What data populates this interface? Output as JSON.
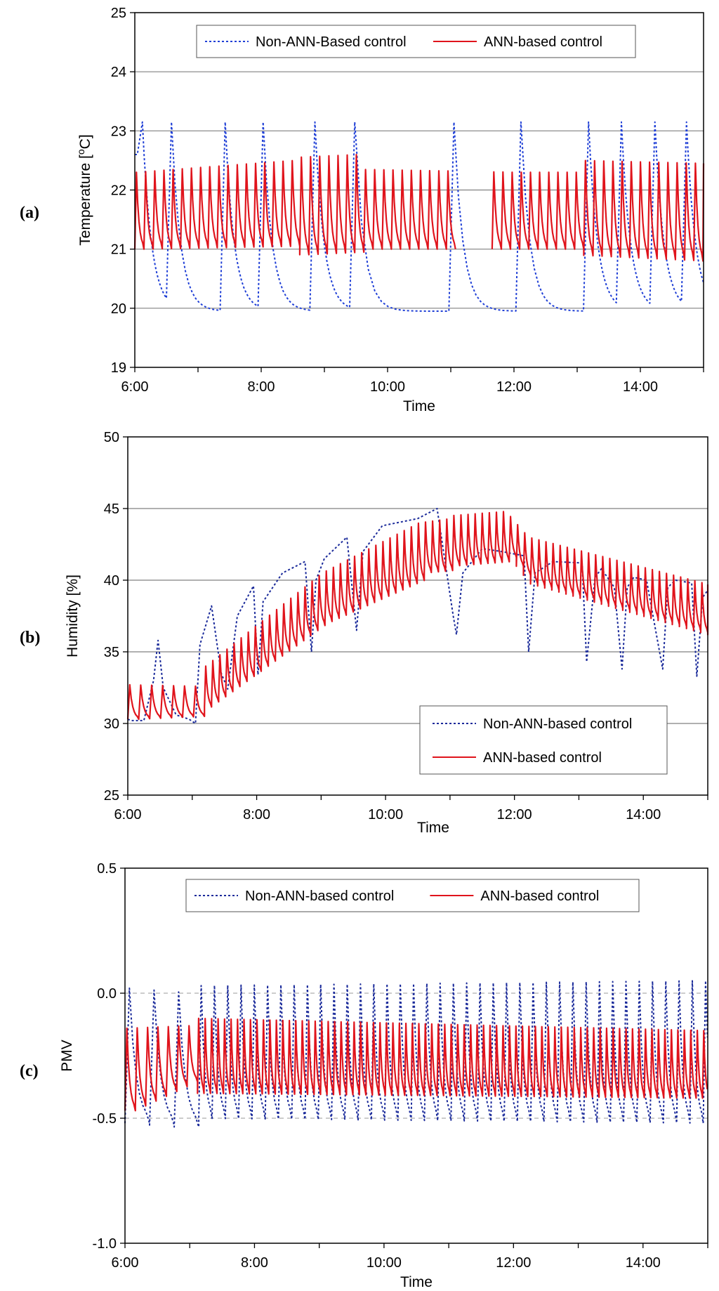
{
  "chart_data": [
    {
      "type": "line",
      "panel_label": "(a)",
      "title": "",
      "xlabel": "Time",
      "ylabel": "Temperature [°C]",
      "ylabel_base": "Temperature [",
      "ylabel_sup": "o",
      "ylabel_end": "C]",
      "xlim": [
        6,
        15
      ],
      "ylim": [
        19,
        25
      ],
      "x_ticks": [
        {
          "value": 6,
          "label": "6:00"
        },
        {
          "value": 8,
          "label": "8:00"
        },
        {
          "value": 10,
          "label": "10:00"
        },
        {
          "value": 12,
          "label": "12:00"
        },
        {
          "value": 14,
          "label": "14:00"
        }
      ],
      "y_ticks": [
        {
          "value": 19,
          "label": "19"
        },
        {
          "value": 20,
          "label": "20"
        },
        {
          "value": 21,
          "label": "21"
        },
        {
          "value": 22,
          "label": "22"
        },
        {
          "value": 23,
          "label": "23"
        },
        {
          "value": 24,
          "label": "24"
        },
        {
          "value": 25,
          "label": "25"
        }
      ],
      "gridlines": "horizontal-solid",
      "legend_position": "top-center",
      "legend_layout": "row",
      "series": [
        {
          "name": "Non-ANN-Based control",
          "color": "#1f3fd6",
          "style": "dotted",
          "model": "sawtooth",
          "rises": [
            6.04,
            6.5,
            7.35,
            7.95,
            8.77,
            9.4,
            10.97,
            12.03,
            13.1,
            13.62,
            14.15,
            14.65
          ],
          "rise_duration": 0.08,
          "start_level": 22.6,
          "peak": 23.15,
          "trough": 19.95,
          "decay_rate": 3.2
        },
        {
          "name": "ANN-based control",
          "color": "#e0141c",
          "style": "solid",
          "model": "oscillation",
          "period": 0.145,
          "gaps": [
            [
              10.98,
              11.6
            ]
          ],
          "segments": [
            {
              "from": 6,
              "to": 8.5,
              "peak": [
                22.3,
                22.5
              ],
              "trough": [
                21.0,
                21.05
              ]
            },
            {
              "from": 8.5,
              "to": 9.5,
              "peak": [
                22.55,
                22.6
              ],
              "trough": [
                20.9,
                20.95
              ]
            },
            {
              "from": 9.5,
              "to": 12,
              "peak": [
                22.35,
                22.3
              ],
              "trough": [
                21.0,
                21.0
              ]
            },
            {
              "from": 12,
              "to": 13,
              "peak": [
                22.3,
                22.3
              ],
              "trough": [
                21.0,
                21.0
              ]
            },
            {
              "from": 13,
              "to": 15,
              "peak": [
                22.5,
                22.45
              ],
              "trough": [
                20.9,
                20.8
              ]
            }
          ]
        }
      ]
    },
    {
      "type": "line",
      "panel_label": "(b)",
      "title": "",
      "xlabel": "Time",
      "ylabel": "Humidity [%]",
      "xlim": [
        6,
        15
      ],
      "ylim": [
        25,
        50
      ],
      "x_ticks": [
        {
          "value": 6,
          "label": "6:00"
        },
        {
          "value": 8,
          "label": "8:00"
        },
        {
          "value": 10,
          "label": "10:00"
        },
        {
          "value": 12,
          "label": "12:00"
        },
        {
          "value": 14,
          "label": "14:00"
        }
      ],
      "y_ticks": [
        {
          "value": 25,
          "label": "25"
        },
        {
          "value": 30,
          "label": "30"
        },
        {
          "value": 35,
          "label": "35"
        },
        {
          "value": 40,
          "label": "40"
        },
        {
          "value": 45,
          "label": "45"
        },
        {
          "value": 50,
          "label": "50"
        }
      ],
      "gridlines": "horizontal-solid",
      "legend_position": "bottom-right",
      "legend_layout": "column",
      "series": [
        {
          "name": "Non-ANN-based control",
          "color": "#1a2a9a",
          "style": "dotted",
          "model": "polyline",
          "x": [
            6.0,
            6.05,
            6.25,
            6.4,
            6.47,
            6.55,
            6.75,
            6.95,
            7.05,
            7.12,
            7.3,
            7.45,
            7.55,
            7.7,
            7.95,
            8.02,
            8.1,
            8.4,
            8.75,
            8.85,
            8.92,
            9.05,
            9.4,
            9.55,
            9.65,
            9.95,
            10.5,
            10.8,
            11.05,
            11.1,
            11.2,
            11.5,
            11.8,
            12.15,
            12.22,
            12.32,
            12.6,
            13.05,
            13.12,
            13.25,
            13.35,
            13.55,
            13.67,
            13.75,
            13.85,
            14.05,
            14.3,
            14.38,
            14.5,
            14.75,
            14.83,
            14.92,
            15.0
          ],
          "y": [
            30.3,
            30.2,
            30.2,
            33.0,
            35.8,
            32.5,
            30.6,
            30.3,
            30.0,
            35.5,
            38.2,
            33.5,
            32.4,
            37.5,
            39.6,
            33.4,
            38.5,
            40.5,
            41.3,
            35.0,
            40.0,
            41.5,
            43.0,
            36.5,
            42.0,
            43.8,
            44.3,
            45.0,
            37.5,
            36.2,
            40.5,
            42.2,
            42.0,
            41.7,
            35.0,
            40.5,
            41.3,
            41.2,
            34.3,
            40.2,
            40.8,
            39.5,
            33.8,
            39.5,
            40.2,
            40.0,
            33.8,
            39.5,
            40.0,
            39.8,
            33.3,
            38.8,
            39.3
          ]
        },
        {
          "name": "ANN-based control",
          "color": "#e0141c",
          "style": "solid",
          "model": "oscillation",
          "period": 0.11,
          "gaps": [],
          "segments": [
            {
              "from": 6,
              "to": 7.05,
              "peak": [
                32.7,
                32.6
              ],
              "trough": [
                30.3,
                30.5
              ],
              "period": 0.17
            },
            {
              "from": 7.05,
              "to": 9.0,
              "peak": [
                33.5,
                40.5
              ],
              "trough": [
                30.7,
                37.0
              ]
            },
            {
              "from": 9.0,
              "to": 10.5,
              "peak": [
                40.5,
                44.0
              ],
              "trough": [
                37.0,
                40.0
              ]
            },
            {
              "from": 10.5,
              "to": 11.0,
              "peak": [
                44.0,
                44.3
              ],
              "trough": [
                40.5,
                40.7
              ]
            },
            {
              "from": 11.0,
              "to": 11.85,
              "peak": [
                44.5,
                44.8
              ],
              "trough": [
                41.0,
                41.3
              ]
            },
            {
              "from": 11.85,
              "to": 12.2,
              "peak": [
                44.8,
                43.0
              ],
              "trough": [
                42.0,
                40.0
              ]
            },
            {
              "from": 12.2,
              "to": 15,
              "peak": [
                43.0,
                39.7
              ],
              "trough": [
                39.8,
                36.2
              ]
            }
          ]
        }
      ]
    },
    {
      "type": "line",
      "panel_label": "(c)",
      "title": "",
      "xlabel": "Time",
      "ylabel": "PMV",
      "xlim": [
        6,
        15
      ],
      "ylim": [
        -1.0,
        0.5
      ],
      "x_ticks": [
        {
          "value": 6,
          "label": "6:00"
        },
        {
          "value": 8,
          "label": "8:00"
        },
        {
          "value": 10,
          "label": "10:00"
        },
        {
          "value": 12,
          "label": "12:00"
        },
        {
          "value": 14,
          "label": "14:00"
        }
      ],
      "y_ticks": [
        {
          "value": -1.0,
          "label": "-1.0"
        },
        {
          "value": -0.5,
          "label": "-0.5"
        },
        {
          "value": 0.0,
          "label": "0.0"
        },
        {
          "value": 0.5,
          "label": "0.5"
        }
      ],
      "gridlines": "dashed-at-0.0-and--0.5",
      "legend_position": "top-center",
      "legend_layout": "row",
      "series": [
        {
          "name": "Non-ANN-based control",
          "color": "#1a2a9a",
          "style": "dotted",
          "model": "oscillation",
          "period": 0.205,
          "gaps": [],
          "segments": [
            {
              "from": 6,
              "to": 7.0,
              "peak": [
                0.02,
                0.0
              ],
              "trough": [
                -0.52,
                -0.54
              ],
              "period": 0.38
            },
            {
              "from": 7.0,
              "to": 15,
              "peak": [
                0.03,
                0.05
              ],
              "trough": [
                -0.5,
                -0.52
              ]
            }
          ]
        },
        {
          "name": "ANN-based control",
          "color": "#e0141c",
          "style": "solid",
          "model": "oscillation",
          "period": 0.1,
          "gaps": [],
          "segments": [
            {
              "from": 6,
              "to": 7.0,
              "peak": [
                -0.14,
                -0.13
              ],
              "trough": [
                -0.47,
                -0.35
              ],
              "period": 0.16
            },
            {
              "from": 7.0,
              "to": 15,
              "peak": [
                -0.1,
                -0.15
              ],
              "trough": [
                -0.4,
                -0.42
              ]
            }
          ]
        }
      ]
    }
  ]
}
